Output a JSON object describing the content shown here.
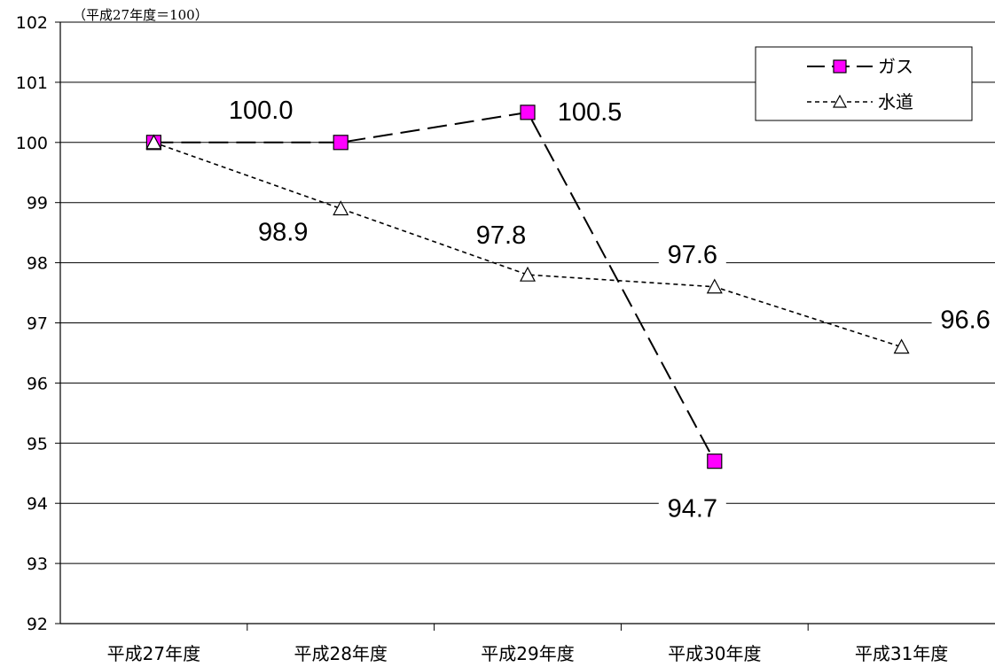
{
  "chart_data": {
    "type": "line",
    "unit_note": "（平成27年度＝100）",
    "categories": [
      "平成27年度",
      "平成28年度",
      "平成29年度",
      "平成30年度",
      "平成31年度"
    ],
    "ylim": [
      92,
      102
    ],
    "yticks": [
      92,
      93,
      94,
      95,
      96,
      97,
      98,
      99,
      100,
      101,
      102
    ],
    "grid": true,
    "legend_position": "top-right",
    "series": [
      {
        "name": "ガス",
        "values": [
          100.0,
          100.0,
          100.5,
          94.7,
          null
        ],
        "labels": [
          "",
          "100.0",
          "100.5",
          "94.7",
          ""
        ],
        "marker": "square",
        "line": "long-dash",
        "marker_color": "#ff00ff"
      },
      {
        "name": "水道",
        "values": [
          100.0,
          98.9,
          97.8,
          97.6,
          96.6
        ],
        "labels": [
          "",
          "98.9",
          "97.8",
          "97.6",
          "96.6"
        ],
        "marker": "triangle",
        "line": "short-dash",
        "marker_color": "#ffffff"
      }
    ]
  }
}
